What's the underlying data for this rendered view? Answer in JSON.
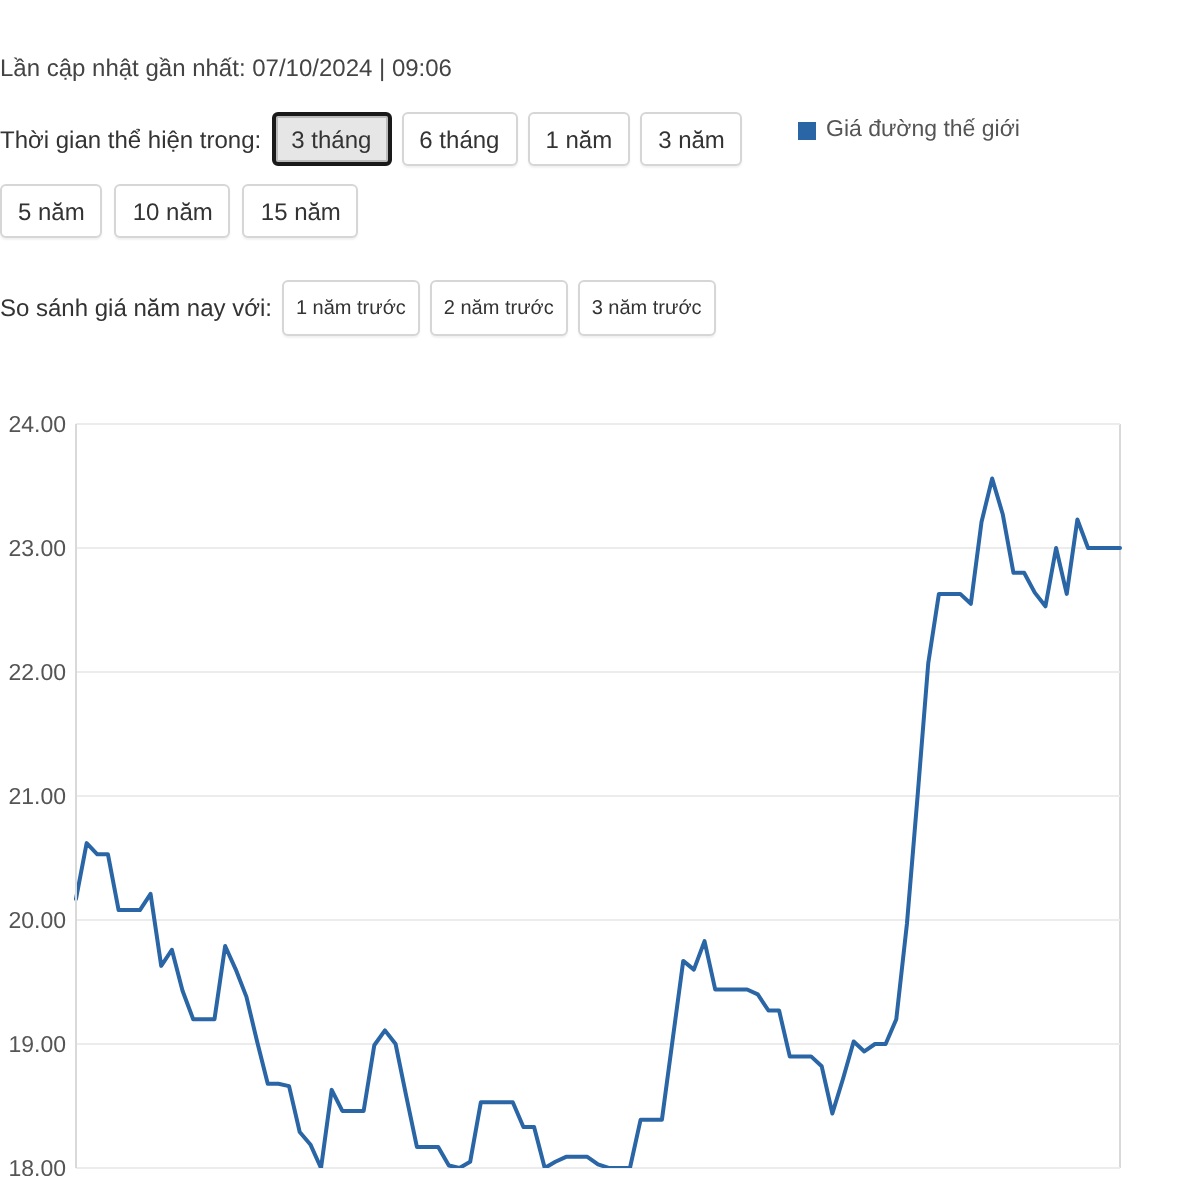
{
  "chart_data": {
    "type": "line",
    "annotations": [
      "Lần cập nhật gần nhất: 07/10/2024 | 09:06",
      "Thời gian thể hiện trong:",
      "3 tháng",
      "6 tháng",
      "1 năm",
      "3 năm",
      "5 năm",
      "10 năm",
      "15 năm",
      "So sánh giá năm nay với:",
      "1 năm trước",
      "2 năm trước",
      "3 năm trước"
    ],
    "categories": [
      null,
      null,
      null,
      null,
      null,
      null,
      null,
      null,
      null,
      null,
      null,
      null,
      null,
      null,
      null,
      null,
      null,
      null,
      null,
      null,
      null,
      null,
      null,
      null,
      null,
      null,
      null,
      null,
      null,
      null,
      null,
      null,
      null,
      null,
      null,
      null,
      null,
      null,
      null,
      null,
      null,
      null,
      null,
      null,
      null,
      null,
      null,
      null,
      null,
      null,
      null,
      null,
      null,
      null,
      null,
      null,
      null,
      null,
      null,
      null,
      null,
      null,
      null,
      null,
      null,
      null,
      null,
      null,
      null,
      null,
      null,
      null,
      null,
      null,
      null,
      null,
      null,
      null,
      null,
      null,
      null,
      null,
      null,
      null,
      null,
      null,
      null,
      null,
      null,
      null,
      null,
      null,
      null,
      null,
      null,
      null,
      null,
      null,
      null
    ],
    "series": [
      {
        "name": "Giá đường thế giới",
        "color": "#2a66a6",
        "values": [
          20.17,
          20.62,
          20.53,
          20.53,
          20.08,
          20.08,
          20.08,
          20.21,
          19.63,
          19.76,
          19.43,
          19.2,
          19.2,
          19.2,
          19.79,
          19.6,
          19.38,
          19.02,
          18.68,
          18.68,
          18.66,
          18.29,
          18.19,
          18.0,
          18.63,
          18.46,
          18.46,
          18.46,
          18.99,
          19.11,
          19.0,
          18.58,
          18.17,
          18.17,
          18.17,
          18.02,
          18.0,
          18.05,
          18.53,
          18.53,
          18.53,
          18.53,
          18.33,
          18.33,
          18.0,
          18.05,
          18.09,
          18.09,
          18.09,
          18.03,
          18.0,
          18.0,
          18.0,
          18.39,
          18.39,
          18.39,
          19.03,
          19.67,
          19.6,
          19.83,
          19.44,
          19.44,
          19.44,
          19.44,
          19.4,
          19.27,
          19.27,
          18.9,
          18.9,
          18.9,
          18.82,
          18.44,
          18.72,
          19.02,
          18.94,
          19.0,
          19.0,
          19.2,
          19.97,
          21.0,
          22.07,
          22.63,
          22.63,
          22.63,
          22.55,
          23.21,
          23.56,
          23.27,
          22.8,
          22.8,
          22.64,
          22.53,
          23.0,
          22.63,
          23.23,
          23.0,
          23.0,
          23.0,
          23.0
        ]
      }
    ],
    "ylim": [
      18,
      24
    ],
    "yticks": [
      {
        "value": 18,
        "label": "18.00"
      },
      {
        "value": 19,
        "label": "19.00"
      },
      {
        "value": 20,
        "label": "20.00"
      },
      {
        "value": 21,
        "label": "21.00"
      },
      {
        "value": 22,
        "label": "22.00"
      },
      {
        "value": 23,
        "label": "23.00"
      },
      {
        "value": 24,
        "label": "24.00"
      }
    ],
    "grid": true,
    "legend": "top right",
    "tick_labels": "y",
    "marker": "none",
    "line_style": "solid"
  }
}
